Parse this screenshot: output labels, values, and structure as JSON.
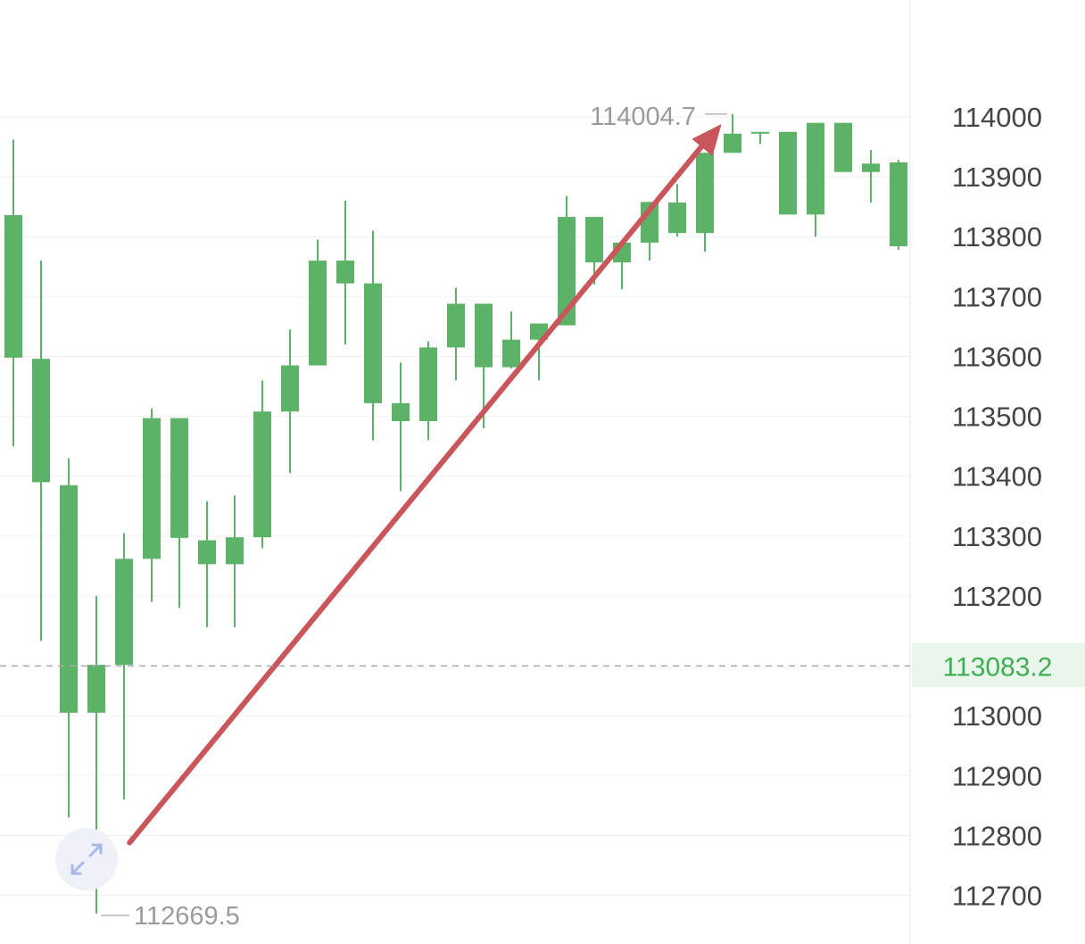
{
  "colors": {
    "up": "#5cb266",
    "down": "#d9525b",
    "trend_arrow": "#c9565b",
    "grid": "#efefef",
    "current_price": "#3fae53",
    "current_price_bg": "#e9f6ec",
    "expand_icon": "#a9b8e6"
  },
  "chart_data": {
    "type": "candlestick",
    "y_axis": {
      "ticks": [
        "114000",
        "113900",
        "113800",
        "113700",
        "113600",
        "113500",
        "113400",
        "113300",
        "113200",
        "113000",
        "112900",
        "112800",
        "112700"
      ],
      "range": [
        112660,
        114020
      ],
      "side": "right"
    },
    "candles": [
      {
        "o": 113598,
        "c": 113836,
        "h": 113962,
        "l": 113450
      },
      {
        "o": 113390,
        "c": 113596,
        "h": 113760,
        "l": 113125
      },
      {
        "o": 113005,
        "c": 113385,
        "h": 113430,
        "l": 112830
      },
      {
        "o": 113005,
        "c": 113085,
        "h": 113200,
        "l": 112670
      },
      {
        "o": 113085,
        "c": 113262,
        "h": 113305,
        "l": 112860
      },
      {
        "o": 113262,
        "c": 113497,
        "h": 113513,
        "l": 113190
      },
      {
        "o": 113297,
        "c": 113497,
        "h": 113497,
        "l": 113180
      },
      {
        "o": 113253,
        "c": 113293,
        "h": 113358,
        "l": 113148
      },
      {
        "o": 113253,
        "c": 113298,
        "h": 113368,
        "l": 113148
      },
      {
        "o": 113298,
        "c": 113508,
        "h": 113560,
        "l": 113280
      },
      {
        "o": 113508,
        "c": 113585,
        "h": 113645,
        "l": 113405
      },
      {
        "o": 113585,
        "c": 113760,
        "h": 113795,
        "l": 113585
      },
      {
        "o": 113722,
        "c": 113760,
        "h": 113860,
        "l": 113620
      },
      {
        "o": 113522,
        "c": 113722,
        "h": 113810,
        "l": 113460
      },
      {
        "o": 113492,
        "c": 113522,
        "h": 113590,
        "l": 113375
      },
      {
        "o": 113492,
        "c": 113615,
        "h": 113625,
        "l": 113460
      },
      {
        "o": 113615,
        "c": 113688,
        "h": 113715,
        "l": 113560
      },
      {
        "o": 113582,
        "c": 113688,
        "h": 113688,
        "l": 113480
      },
      {
        "o": 113582,
        "c": 113628,
        "h": 113675,
        "l": 113580
      },
      {
        "o": 113628,
        "c": 113655,
        "h": 113655,
        "l": 113560
      },
      {
        "o": 113652,
        "c": 113833,
        "h": 113868,
        "l": 113652
      },
      {
        "o": 113757,
        "c": 113833,
        "h": 113833,
        "l": 113720
      },
      {
        "o": 113757,
        "c": 113790,
        "h": 113790,
        "l": 113712
      },
      {
        "o": 113790,
        "c": 113858,
        "h": 113858,
        "l": 113760
      },
      {
        "o": 113806,
        "c": 113857,
        "h": 113888,
        "l": 113800
      },
      {
        "o": 113806,
        "c": 113940,
        "h": 113940,
        "l": 113775
      },
      {
        "o": 113940,
        "c": 113972,
        "h": 114004.7,
        "l": 113940
      },
      {
        "o": 113972,
        "c": 113975,
        "h": 113975,
        "l": 113955
      },
      {
        "o": 113837,
        "c": 113975,
        "h": 113975,
        "l": 113837
      },
      {
        "o": 113837,
        "c": 113990,
        "h": 113990,
        "l": 113800
      },
      {
        "o": 113908,
        "c": 113990,
        "h": 113990,
        "l": 113908
      },
      {
        "o": 113908,
        "c": 113922,
        "h": 113945,
        "l": 113857
      },
      {
        "o": 113784,
        "c": 113924,
        "h": 113928,
        "l": 113778
      }
    ],
    "high_label": "114004.7",
    "low_label": "112669.5",
    "current_price": 113083.2,
    "current_price_label": "113083.2",
    "annotation": {
      "type": "arrow",
      "from": {
        "candle": 4.2,
        "price": 112788
      },
      "to": {
        "candle": 25.6,
        "price": 113988
      }
    }
  },
  "controls": {
    "expand_icon": "expand-arrows-icon"
  }
}
